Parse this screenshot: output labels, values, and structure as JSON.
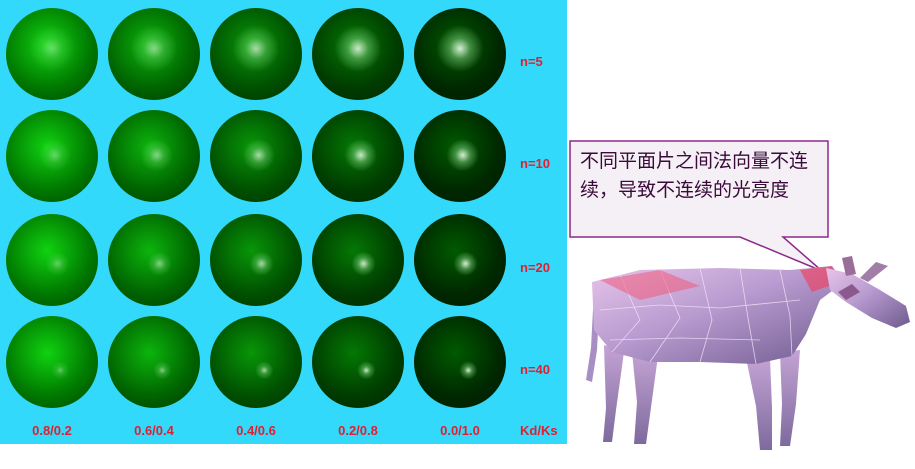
{
  "grid": {
    "row_labels": [
      "n=5",
      "n=10",
      "n=20",
      "n=40"
    ],
    "column_labels": [
      "0.8/0.2",
      "0.6/0.4",
      "0.4/0.6",
      "0.2/0.8",
      "0.0/1.0"
    ],
    "axis_label": "Kd/Ks",
    "exponents": [
      5,
      10,
      20,
      40
    ],
    "kd_values": [
      0.8,
      0.6,
      0.4,
      0.2,
      0.0
    ],
    "ks_values": [
      0.2,
      0.4,
      0.6,
      0.8,
      1.0
    ],
    "background_color": "#33d9fb",
    "label_color": "#e01f2f"
  },
  "callout": {
    "text": "不同平面片之间法向量不连续，导致不连续的光亮度",
    "fill_color": "#f5f0f5",
    "border_color": "#8a2a8a"
  },
  "cow": {
    "color": "#c9a6d6"
  }
}
